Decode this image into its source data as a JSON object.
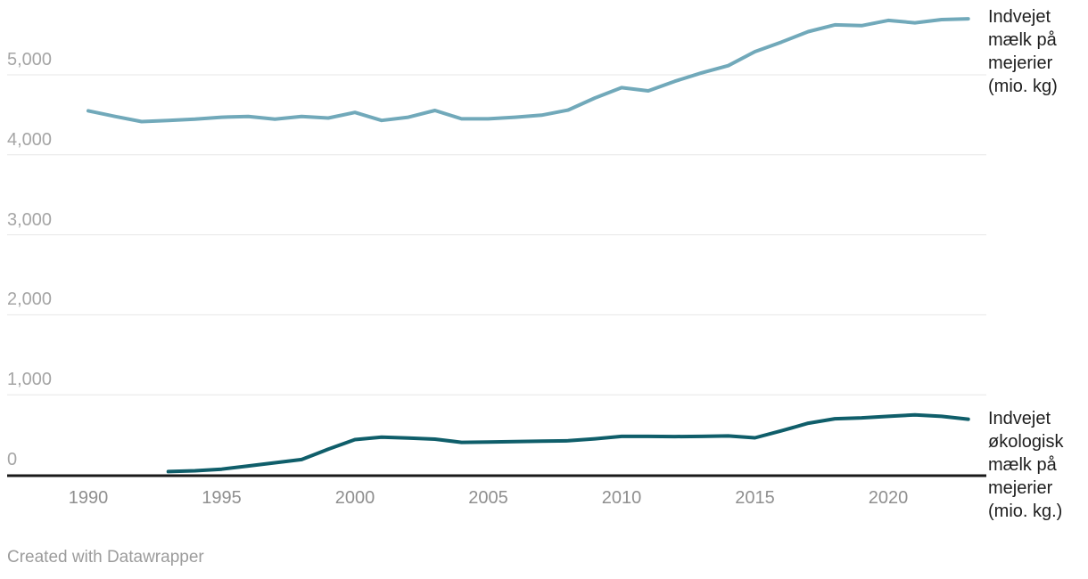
{
  "chart_data": {
    "type": "line",
    "title": "",
    "grid": "horizontal",
    "legend_position": "line-end-labels-right",
    "x_range": [
      1990,
      2023
    ],
    "ylim": [
      0,
      5900
    ],
    "x_ticks": [
      {
        "year": 1990,
        "label": "1990"
      },
      {
        "year": 1995,
        "label": "1995"
      },
      {
        "year": 2000,
        "label": "2000"
      },
      {
        "year": 2005,
        "label": "2005"
      },
      {
        "year": 2010,
        "label": "2010"
      },
      {
        "year": 2015,
        "label": "2015"
      },
      {
        "year": 2020,
        "label": "2020"
      }
    ],
    "y_ticks": [
      {
        "value": 0,
        "label": "0"
      },
      {
        "value": 1000,
        "label": "1,000"
      },
      {
        "value": 2000,
        "label": "2,000"
      },
      {
        "value": 3000,
        "label": "3,000"
      },
      {
        "value": 4000,
        "label": "4,000"
      },
      {
        "value": 5000,
        "label": "5,000"
      }
    ],
    "series": [
      {
        "name": "Indvejet mælk på mejerier (mio. kg)",
        "label_lines": [
          "Indvejet",
          "mælk på",
          "mejerier",
          "(mio. kg)"
        ],
        "color": "#71a9ba",
        "start_year": 1990,
        "values": [
          4550,
          4480,
          4415,
          4430,
          4445,
          4470,
          4480,
          4445,
          4480,
          4460,
          4530,
          4430,
          4470,
          4555,
          4450,
          4450,
          4470,
          4495,
          4560,
          4710,
          4840,
          4800,
          4920,
          5025,
          5115,
          5290,
          5410,
          5540,
          5625,
          5615,
          5680,
          5650,
          5690,
          5700
        ]
      },
      {
        "name": "Indvejet økologisk mælk på mejerier (mio. kg.)",
        "label_lines": [
          "Indvejet",
          "økologisk",
          "mælk på",
          "mejerier",
          "(mio. kg.)"
        ],
        "color": "#0f5e6a",
        "start_year": 1993,
        "values": [
          40,
          50,
          70,
          110,
          150,
          190,
          320,
          440,
          470,
          460,
          445,
          405,
          410,
          415,
          420,
          425,
          450,
          480,
          480,
          478,
          480,
          485,
          462,
          550,
          645,
          700,
          712,
          730,
          750,
          730,
          695
        ]
      }
    ],
    "colors": {
      "gridline": "#e7e7e7",
      "axis_line": "#191919",
      "y_tick_label": "#a5a5a5",
      "x_tick_label": "#8f8f8f",
      "series_label_text": "#1e1e1e"
    }
  },
  "footer": {
    "credit": "Created with Datawrapper"
  }
}
